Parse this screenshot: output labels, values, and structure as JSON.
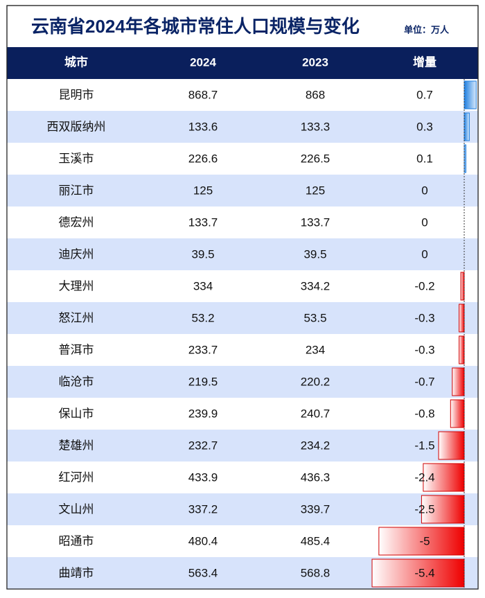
{
  "header": {
    "title": "云南省2024年各城市常住人口规模与变化",
    "unit": "单位：万人"
  },
  "table": {
    "columns": [
      "城市",
      "2024",
      "2023",
      "增量"
    ],
    "rows": [
      [
        "昆明市",
        868.7,
        868,
        0.7
      ],
      [
        "西双版纳州",
        133.6,
        133.3,
        0.3
      ],
      [
        "玉溪市",
        226.6,
        226.5,
        0.1
      ],
      [
        "丽江市",
        125,
        125,
        0
      ],
      [
        "德宏州",
        133.7,
        133.7,
        0
      ],
      [
        "迪庆州",
        39.5,
        39.5,
        0
      ],
      [
        "大理州",
        334,
        334.2,
        -0.2
      ],
      [
        "怒江州",
        53.2,
        53.5,
        -0.3
      ],
      [
        "普洱市",
        233.7,
        234,
        -0.3
      ],
      [
        "临沧市",
        219.5,
        220.2,
        -0.7
      ],
      [
        "保山市",
        239.9,
        240.7,
        -0.8
      ],
      [
        "楚雄州",
        232.7,
        234.2,
        -1.5
      ],
      [
        "红河州",
        433.9,
        436.3,
        -2.4
      ],
      [
        "文山州",
        337.2,
        339.7,
        -2.5
      ],
      [
        "昭通市",
        480.4,
        485.4,
        -5
      ],
      [
        "曲靖市",
        563.4,
        568.8,
        -5.4
      ]
    ]
  }
}
